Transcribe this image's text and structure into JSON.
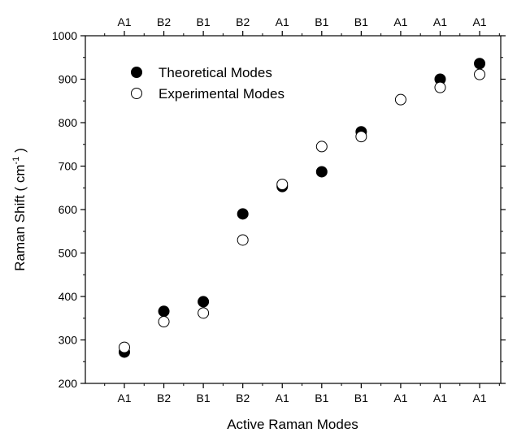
{
  "chart_data": {
    "type": "scatter",
    "xlabel": "Active Raman Modes",
    "ylabel": "Raman Shift ( cm",
    "ylabel_sup": "-1",
    "ylabel_close": " )",
    "categories": [
      "A1",
      "B2",
      "B1",
      "B2",
      "A1",
      "B1",
      "B1",
      "A1",
      "A1",
      "A1"
    ],
    "ylim": [
      200,
      1000
    ],
    "yticks": [
      200,
      300,
      400,
      500,
      600,
      700,
      800,
      900,
      1000
    ],
    "legend_position": "top-left",
    "series": [
      {
        "name": "Theoretical Modes",
        "marker": "filled-circle",
        "values": [
          272,
          366,
          388,
          590,
          653,
          687,
          779,
          null,
          900,
          936
        ]
      },
      {
        "name": "Experimental Modes",
        "marker": "open-circle",
        "values": [
          283,
          342,
          362,
          530,
          658,
          745,
          768,
          853,
          881,
          911
        ]
      }
    ]
  }
}
